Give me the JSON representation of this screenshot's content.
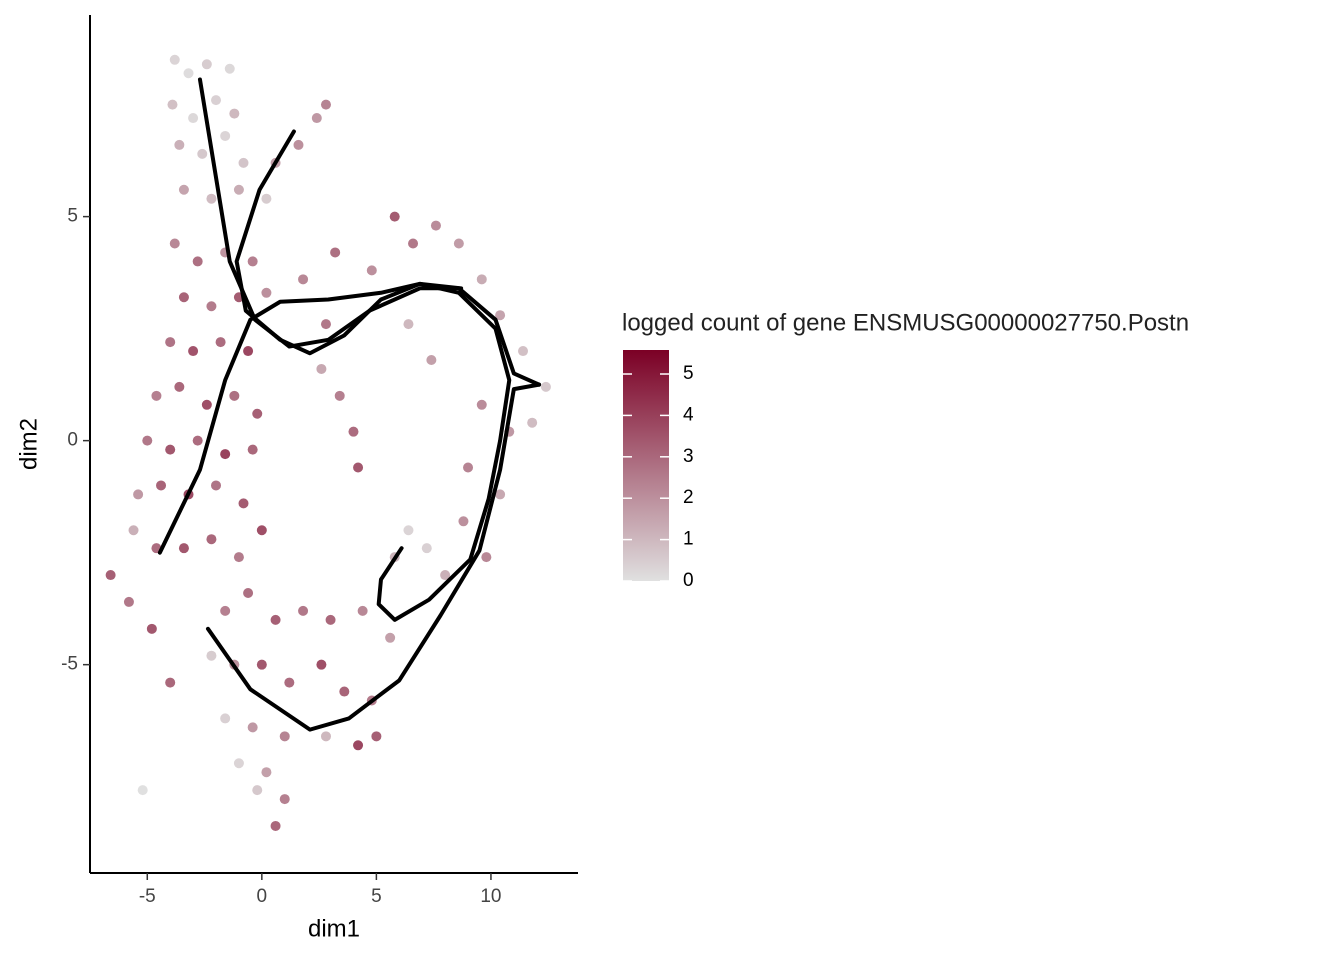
{
  "chart_data": {
    "type": "scatter",
    "xlabel": "dim1",
    "ylabel": "dim2",
    "xlim": [
      -7.5,
      13.8
    ],
    "ylim": [
      -9.65,
      9.5
    ],
    "xticks": [
      {
        "value": -5,
        "label": "-5"
      },
      0,
      5,
      10
    ],
    "yticks": [
      {
        "value": -5,
        "label": "-5"
      },
      0,
      5
    ],
    "x": [
      -3.8,
      -3.2,
      -2.4,
      -1.4,
      -3.9,
      -3.0,
      -2.0,
      -1.2,
      -3.6,
      -2.6,
      -1.6,
      -0.8,
      -3.4,
      -2.2,
      -1.0,
      0.2,
      0.6,
      1.6,
      2.4,
      2.8,
      -3.8,
      -2.8,
      -1.6,
      -0.4,
      -3.4,
      -2.2,
      -1.0,
      0.2,
      -4.0,
      -3.0,
      -1.8,
      -0.6,
      -4.6,
      -3.6,
      -2.4,
      -1.2,
      -0.2,
      -5.0,
      -4.0,
      -2.8,
      -1.6,
      -0.4,
      -5.4,
      -4.4,
      -3.2,
      -2.0,
      -0.8,
      -5.6,
      -4.6,
      -3.4,
      -2.2,
      -1.0,
      0.0,
      -6.6,
      -5.8,
      -4.8,
      -4.0,
      1.8,
      3.2,
      4.8,
      5.8,
      6.6,
      7.6,
      8.6,
      2.6,
      3.4,
      4.0,
      4.2,
      2.8,
      6.4,
      7.4,
      9.6,
      10.4,
      11.4,
      12.4,
      11.8,
      10.8,
      9.6,
      9.0,
      10.4,
      8.8,
      9.8,
      8.0,
      7.2,
      6.4,
      5.8,
      -1.6,
      -0.6,
      0.6,
      1.8,
      3.0,
      4.4,
      5.6,
      -2.2,
      -1.2,
      0.0,
      1.2,
      2.6,
      3.6,
      4.8,
      -1.6,
      -0.4,
      1.0,
      2.8,
      4.2,
      5.0,
      -1.0,
      0.2,
      1.0,
      0.6,
      -0.2,
      -5.2
    ],
    "y": [
      8.5,
      8.2,
      8.4,
      8.3,
      7.5,
      7.2,
      7.6,
      7.3,
      6.6,
      6.4,
      6.8,
      6.2,
      5.6,
      5.4,
      5.6,
      5.4,
      6.2,
      6.6,
      7.2,
      7.5,
      4.4,
      4.0,
      4.2,
      4.0,
      3.2,
      3.0,
      3.2,
      3.3,
      2.2,
      2.0,
      2.2,
      2.0,
      1.0,
      1.2,
      0.8,
      1.0,
      0.6,
      0.0,
      -0.2,
      0.0,
      -0.3,
      -0.2,
      -1.2,
      -1.0,
      -1.2,
      -1.0,
      -1.4,
      -2.0,
      -2.4,
      -2.4,
      -2.2,
      -2.6,
      -2.0,
      -3.0,
      -3.6,
      -4.2,
      -5.4,
      3.6,
      4.2,
      3.8,
      5.0,
      4.4,
      4.8,
      4.4,
      1.6,
      1.0,
      0.2,
      -0.6,
      2.6,
      2.6,
      1.8,
      3.6,
      2.8,
      2.0,
      1.2,
      0.4,
      0.2,
      0.8,
      -0.6,
      -1.2,
      -1.8,
      -2.6,
      -3.0,
      -2.4,
      -2.0,
      -2.6,
      -3.8,
      -3.4,
      -4.0,
      -3.8,
      -4.0,
      -3.8,
      -4.4,
      -4.8,
      -5.0,
      -5.0,
      -5.4,
      -5.0,
      -5.6,
      -5.8,
      -6.2,
      -6.4,
      -6.6,
      -6.6,
      -6.8,
      -6.6,
      -7.2,
      -7.4,
      -8.0,
      -8.6,
      -7.8,
      -7.8
    ],
    "color_values": [
      0.3,
      0.1,
      0.5,
      0.2,
      0.8,
      0.2,
      0.4,
      1.0,
      1.2,
      0.6,
      0.3,
      0.7,
      1.5,
      0.9,
      1.3,
      0.5,
      1.6,
      2.0,
      1.8,
      2.3,
      2.2,
      2.8,
      1.9,
      2.4,
      3.1,
      2.5,
      3.3,
      2.0,
      2.7,
      3.5,
      2.9,
      3.8,
      2.4,
      3.0,
      3.6,
      2.8,
      3.2,
      2.6,
      3.4,
      2.9,
      3.9,
      3.0,
      1.8,
      3.1,
      3.7,
      2.7,
      3.3,
      1.2,
      2.9,
      3.4,
      3.0,
      2.5,
      3.6,
      3.2,
      2.6,
      3.4,
      3.0,
      2.2,
      2.8,
      2.0,
      3.3,
      2.6,
      2.1,
      1.7,
      1.4,
      2.4,
      2.9,
      3.4,
      2.6,
      1.0,
      1.6,
      1.3,
      1.5,
      0.8,
      0.6,
      0.9,
      1.8,
      2.1,
      2.3,
      1.4,
      2.0,
      2.2,
      1.2,
      0.4,
      0.3,
      1.1,
      2.4,
      2.8,
      3.2,
      2.6,
      3.0,
      2.2,
      1.6,
      0.5,
      2.0,
      3.4,
      2.9,
      3.6,
      3.1,
      2.5,
      0.4,
      1.8,
      2.3,
      1.0,
      3.8,
      3.2,
      0.3,
      1.6,
      2.4,
      3.0,
      0.6,
      0.0
    ],
    "colorscale": [
      "#e0e0e0",
      "#7b0025"
    ],
    "clim": [
      0,
      5.58
    ],
    "colorbar_title": "logged count of gene ENSMUSG00000027750.Postn",
    "colorbar_ticks": [
      0,
      1,
      2,
      3,
      4,
      5
    ],
    "curves": [
      {
        "x": [
          -2.7,
          -1.4,
          -0.3,
          1.2,
          2.9,
          4.7,
          6.9,
          8.6,
          10.2,
          11.0,
          12.1
        ],
        "y": [
          8.06,
          4.0,
          2.7,
          2.1,
          2.25,
          2.9,
          3.4,
          3.4,
          2.7,
          1.5,
          1.25
        ]
      },
      {
        "x": [
          1.4,
          -0.1,
          -1.1,
          -0.7,
          0.8,
          2.1,
          3.6,
          5.2,
          6.9,
          8.7
        ],
        "y": [
          6.9,
          5.6,
          4.0,
          2.9,
          2.25,
          1.95,
          2.35,
          3.15,
          3.5,
          3.4
        ]
      },
      {
        "x": [
          -4.45,
          -2.7,
          -1.6,
          -0.5,
          0.8,
          2.9,
          5.2,
          6.9,
          8.6,
          10.2,
          10.8,
          10.4,
          9.9,
          9.1,
          7.3,
          5.8,
          5.1,
          5.2,
          6.1
        ],
        "y": [
          -2.5,
          -0.65,
          1.35,
          2.7,
          3.1,
          3.15,
          3.3,
          3.5,
          3.3,
          2.5,
          1.35,
          0,
          -1.3,
          -2.65,
          -3.55,
          -4.0,
          -3.65,
          -3.1,
          -2.4
        ]
      },
      {
        "x": [
          -2.35,
          -0.5,
          2.1,
          3.8,
          6.0,
          7.8,
          9.5,
          10.4,
          11.0,
          12.1
        ],
        "y": [
          -4.2,
          -5.55,
          -6.45,
          -6.2,
          -5.35,
          -3.9,
          -2.45,
          -0.65,
          1.15,
          1.25
        ]
      }
    ]
  }
}
